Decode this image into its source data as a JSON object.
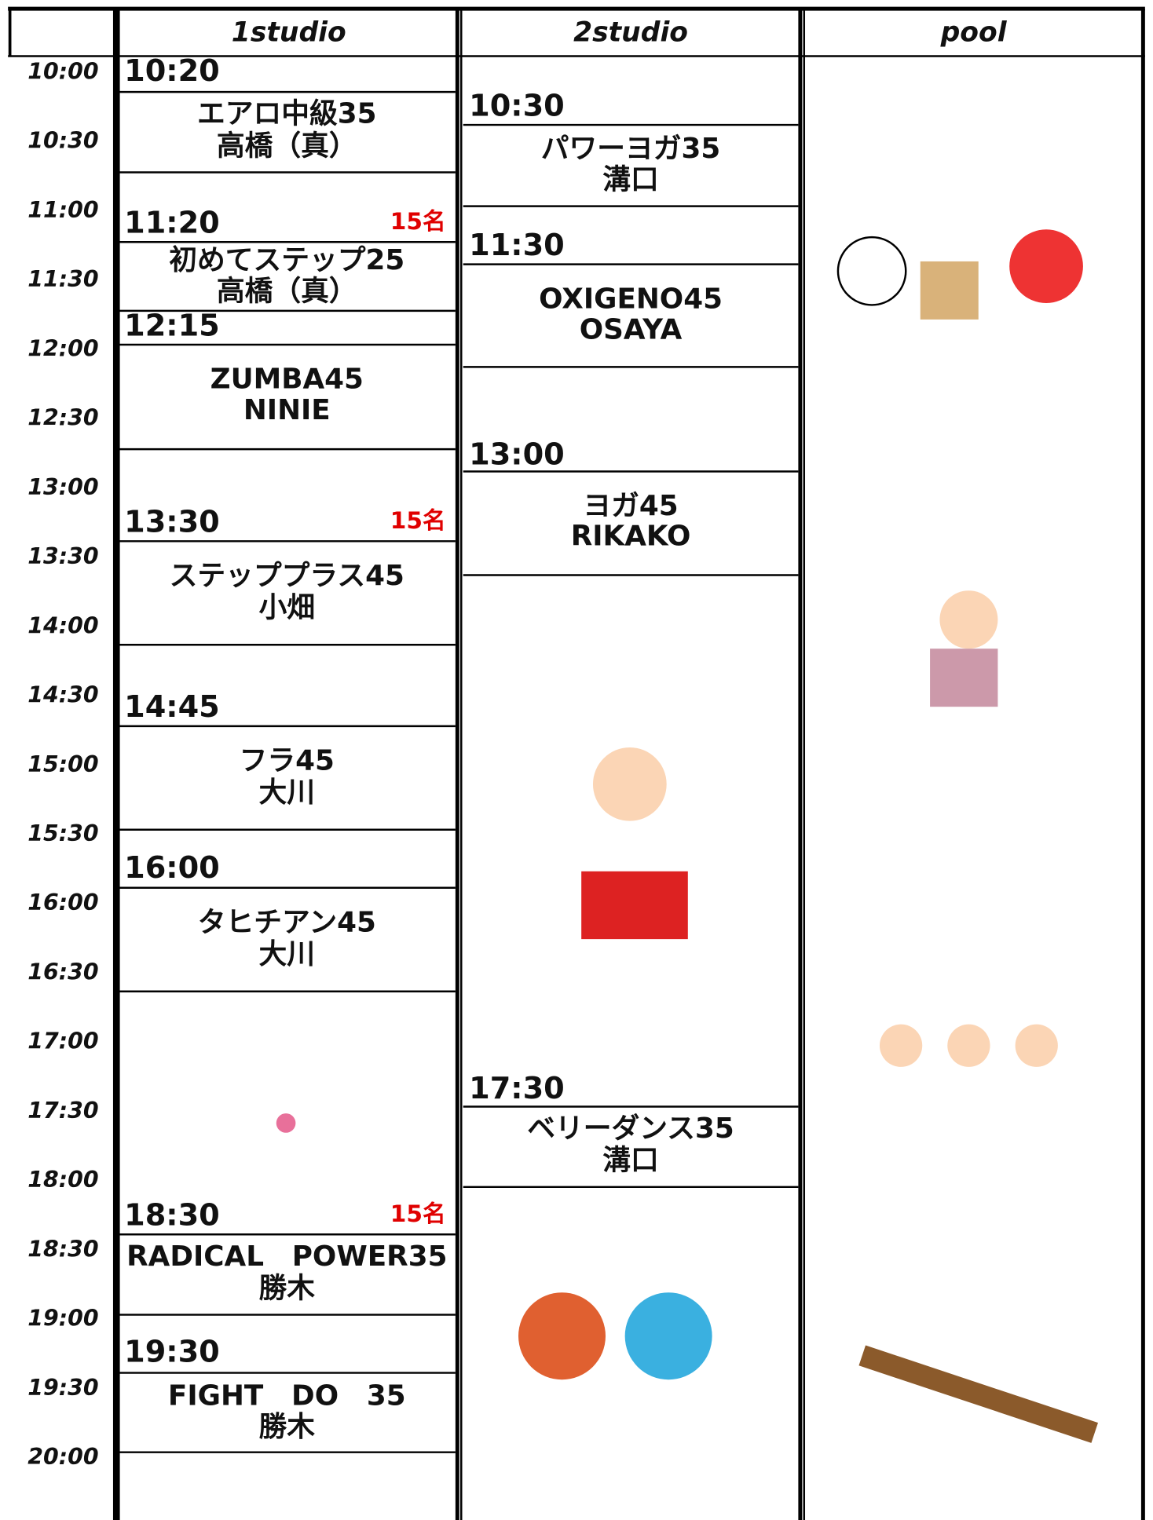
{
  "header": {
    "columns": [
      "1studio",
      "2studio",
      "pool"
    ]
  },
  "times": [
    "10:00",
    "10:30",
    "11:00",
    "11:30",
    "12:00",
    "12:30",
    "13:00",
    "13:30",
    "14:00",
    "14:30",
    "15:00",
    "15:30",
    "16:00",
    "16:30",
    "17:00",
    "17:30",
    "18:00",
    "18:30",
    "19:00",
    "19:30",
    "20:00"
  ],
  "studio1": [
    {
      "start": "10:20",
      "name": "エアロ中級35",
      "instructor": "高橋（真）"
    },
    {
      "start": "11:20",
      "capacity": "15名",
      "name": "初めてステップ25",
      "instructor": "高橋（真）"
    },
    {
      "start": "12:15",
      "name": "ZUMBA45",
      "instructor": "NINIE"
    },
    {
      "start": "13:30",
      "capacity": "15名",
      "name": "ステッププラス45",
      "instructor": "小畑"
    },
    {
      "start": "14:45",
      "name": "フラ45",
      "instructor": "大川"
    },
    {
      "start": "16:00",
      "name": "タヒチアン45",
      "instructor": "大川"
    },
    {
      "start": "18:30",
      "capacity": "15名",
      "name": "RADICAL　POWER35",
      "instructor": "勝木"
    },
    {
      "start": "19:30",
      "name": "FIGHT　DO　35",
      "instructor": "勝木"
    }
  ],
  "studio2": [
    {
      "start": "10:30",
      "name": "パワーヨガ35",
      "instructor": "溝口"
    },
    {
      "start": "11:30",
      "name": "OXIGENO45",
      "instructor": "OSAYA"
    },
    {
      "start": "13:00",
      "name": "ヨガ45",
      "instructor": "RIKAKO"
    },
    {
      "start": "17:30",
      "name": "ベリーダンス35",
      "instructor": "溝口"
    }
  ]
}
